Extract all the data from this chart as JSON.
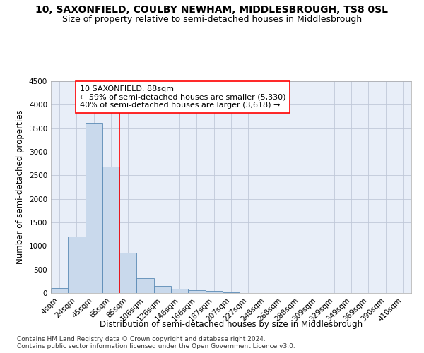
{
  "title_line1": "10, SAXONFIELD, COULBY NEWHAM, MIDDLESBROUGH, TS8 0SL",
  "title_line2": "Size of property relative to semi-detached houses in Middlesbrough",
  "xlabel": "Distribution of semi-detached houses by size in Middlesbrough",
  "ylabel": "Number of semi-detached properties",
  "categories": [
    "4sqm",
    "24sqm",
    "45sqm",
    "65sqm",
    "85sqm",
    "106sqm",
    "126sqm",
    "146sqm",
    "166sqm",
    "187sqm",
    "207sqm",
    "227sqm",
    "248sqm",
    "268sqm",
    "288sqm",
    "309sqm",
    "329sqm",
    "349sqm",
    "369sqm",
    "390sqm",
    "410sqm"
  ],
  "values": [
    100,
    1200,
    3620,
    2680,
    850,
    310,
    155,
    85,
    60,
    40,
    20,
    0,
    0,
    0,
    0,
    0,
    0,
    0,
    0,
    0,
    0
  ],
  "bar_color": "#c9d9ec",
  "bar_edge_color": "#5a8ab5",
  "vline_x": 3.5,
  "annotation_text": "10 SAXONFIELD: 88sqm\n← 59% of semi-detached houses are smaller (5,330)\n40% of semi-detached houses are larger (3,618) →",
  "annotation_box_color": "white",
  "annotation_box_edge_color": "red",
  "vline_color": "red",
  "ylim": [
    0,
    4500
  ],
  "yticks": [
    0,
    500,
    1000,
    1500,
    2000,
    2500,
    3000,
    3500,
    4000,
    4500
  ],
  "grid_color": "#c0c8d8",
  "bg_color": "#e8eef8",
  "footer": "Contains HM Land Registry data © Crown copyright and database right 2024.\nContains public sector information licensed under the Open Government Licence v3.0.",
  "title_fontsize": 10,
  "subtitle_fontsize": 9,
  "axis_label_fontsize": 8.5,
  "tick_fontsize": 7.5,
  "annotation_fontsize": 8,
  "footer_fontsize": 6.5
}
